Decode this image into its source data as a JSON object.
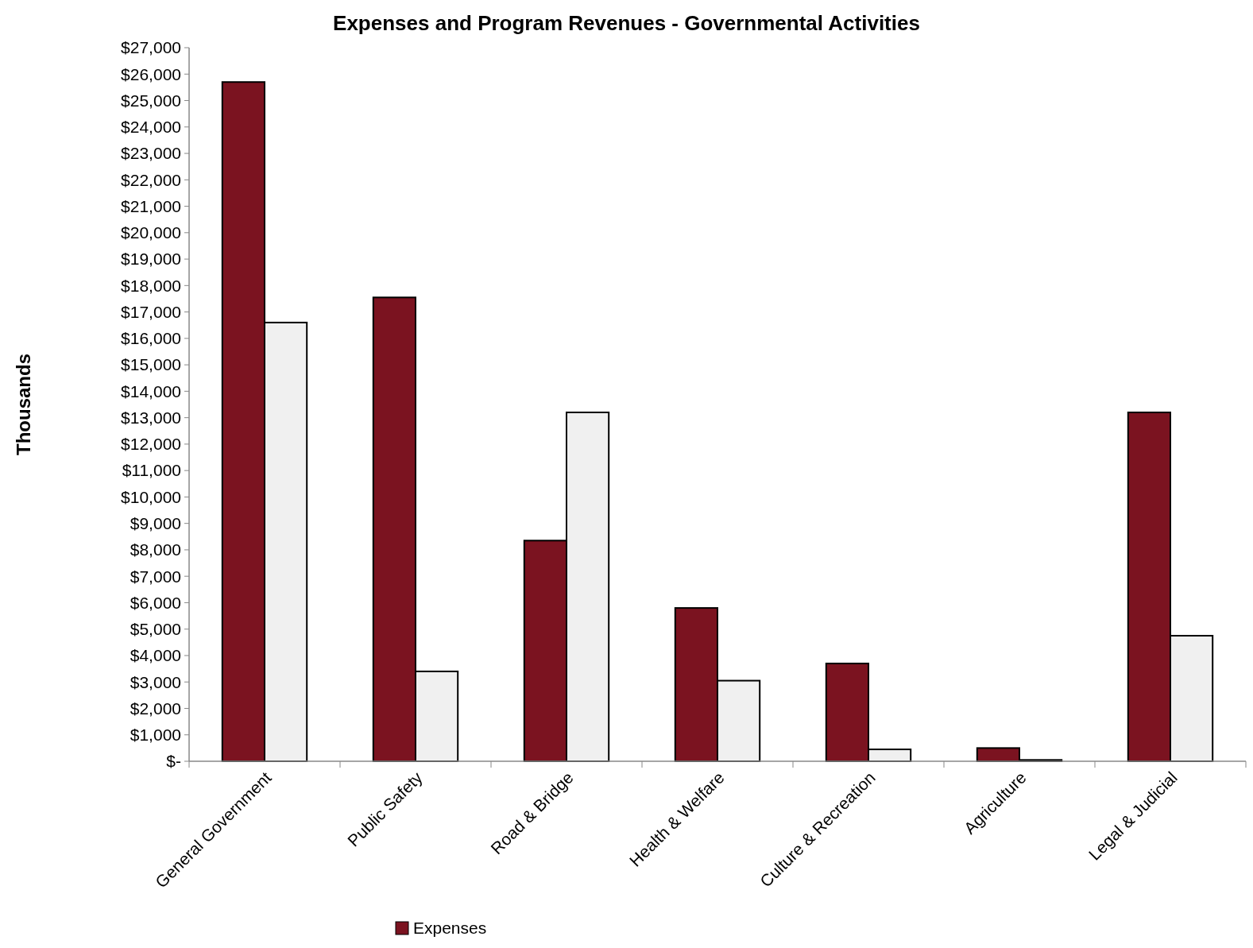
{
  "chart_data": {
    "type": "bar",
    "title": "Expenses and Program Revenues - Governmental Activities",
    "ylabel": "Thousands",
    "categories": [
      "General Government",
      "Public Safety",
      "Road & Bridge",
      "Health & Welfare",
      "Culture & Recreation",
      "Agriculture",
      "Legal & Judicial"
    ],
    "series": [
      {
        "name": "Expenses",
        "color": "#7b1320",
        "values": [
          25700,
          17550,
          8350,
          5800,
          3700,
          500,
          13200
        ]
      },
      {
        "color": "#f0f0f0",
        "values": [
          16600,
          3400,
          13200,
          3050,
          450,
          50,
          4750
        ]
      }
    ],
    "ylim": [
      0,
      27000
    ],
    "yticks": [
      {
        "value": 0,
        "label": "$-"
      },
      {
        "value": 1000,
        "label": "$1,000"
      },
      {
        "value": 2000,
        "label": "$2,000"
      },
      {
        "value": 3000,
        "label": "$3,000"
      },
      {
        "value": 4000,
        "label": "$4,000"
      },
      {
        "value": 5000,
        "label": "$5,000"
      },
      {
        "value": 6000,
        "label": "$6,000"
      },
      {
        "value": 7000,
        "label": "$7,000"
      },
      {
        "value": 8000,
        "label": "$8,000"
      },
      {
        "value": 9000,
        "label": "$9,000"
      },
      {
        "value": 10000,
        "label": "$10,000"
      },
      {
        "value": 11000,
        "label": "$11,000"
      },
      {
        "value": 12000,
        "label": "$12,000"
      },
      {
        "value": 13000,
        "label": "$13,000"
      },
      {
        "value": 14000,
        "label": "$14,000"
      },
      {
        "value": 15000,
        "label": "$15,000"
      },
      {
        "value": 16000,
        "label": "$16,000"
      },
      {
        "value": 17000,
        "label": "$17,000"
      },
      {
        "value": 18000,
        "label": "$18,000"
      },
      {
        "value": 19000,
        "label": "$19,000"
      },
      {
        "value": 20000,
        "label": "$20,000"
      },
      {
        "value": 21000,
        "label": "$21,000"
      },
      {
        "value": 22000,
        "label": "$22,000"
      },
      {
        "value": 23000,
        "label": "$23,000"
      },
      {
        "value": 24000,
        "label": "$24,000"
      },
      {
        "value": 25000,
        "label": "$25,000"
      },
      {
        "value": 26000,
        "label": "$26,000"
      },
      {
        "value": 27000,
        "label": "$27,000"
      }
    ],
    "grid": false,
    "legend": "bottom"
  }
}
